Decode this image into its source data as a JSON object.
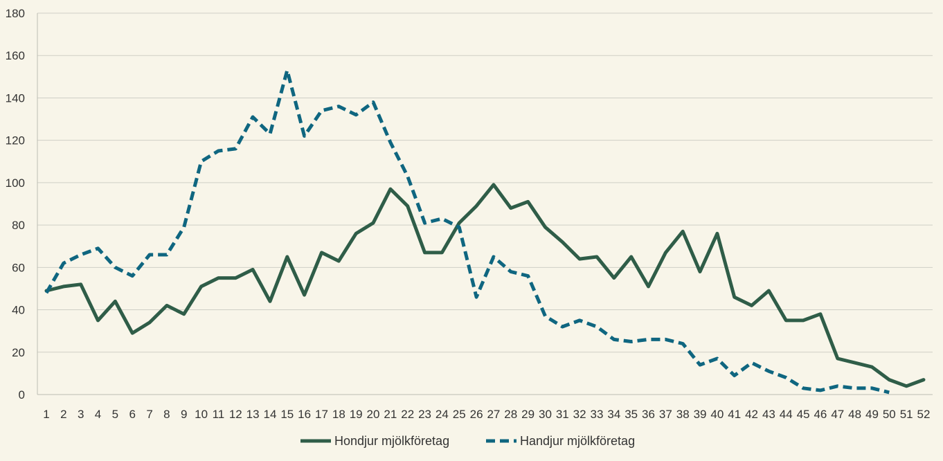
{
  "chart_data": {
    "type": "line",
    "title": "",
    "xlabel": "",
    "ylabel": "",
    "x": [
      1,
      2,
      3,
      4,
      5,
      6,
      7,
      8,
      9,
      10,
      11,
      12,
      13,
      14,
      15,
      16,
      17,
      18,
      19,
      20,
      21,
      22,
      23,
      24,
      25,
      26,
      27,
      28,
      29,
      30,
      31,
      32,
      33,
      34,
      35,
      36,
      37,
      38,
      39,
      40,
      41,
      42,
      43,
      44,
      45,
      46,
      47,
      48,
      49,
      50,
      51,
      52
    ],
    "ylim": [
      0,
      180
    ],
    "yticks": [
      0,
      20,
      40,
      60,
      80,
      100,
      120,
      140,
      160,
      180
    ],
    "grid": true,
    "legend_position": "bottom",
    "series": [
      {
        "name": "Hondjur mjölkföretag",
        "color": "#2f5d48",
        "style": "solid",
        "values": [
          49,
          51,
          52,
          35,
          44,
          29,
          34,
          42,
          38,
          51,
          55,
          55,
          59,
          44,
          65,
          47,
          67,
          63,
          76,
          81,
          97,
          89,
          67,
          67,
          81,
          89,
          99,
          88,
          91,
          79,
          72,
          64,
          65,
          55,
          65,
          51,
          67,
          77,
          58,
          76,
          46,
          42,
          49,
          35,
          35,
          38,
          17,
          15,
          13,
          7,
          4,
          7
        ]
      },
      {
        "name": "Handjur mjölkföretag",
        "color": "#0f6680",
        "style": "dashed",
        "values": [
          48,
          62,
          66,
          69,
          60,
          56,
          66,
          66,
          79,
          110,
          115,
          116,
          131,
          123,
          153,
          122,
          134,
          136,
          132,
          138,
          119,
          103,
          81,
          83,
          79,
          46,
          65,
          58,
          56,
          37,
          32,
          35,
          32,
          26,
          25,
          26,
          26,
          24,
          14,
          17,
          9,
          15,
          11,
          8,
          3,
          2,
          4,
          3,
          3,
          1,
          null,
          null
        ]
      }
    ]
  }
}
